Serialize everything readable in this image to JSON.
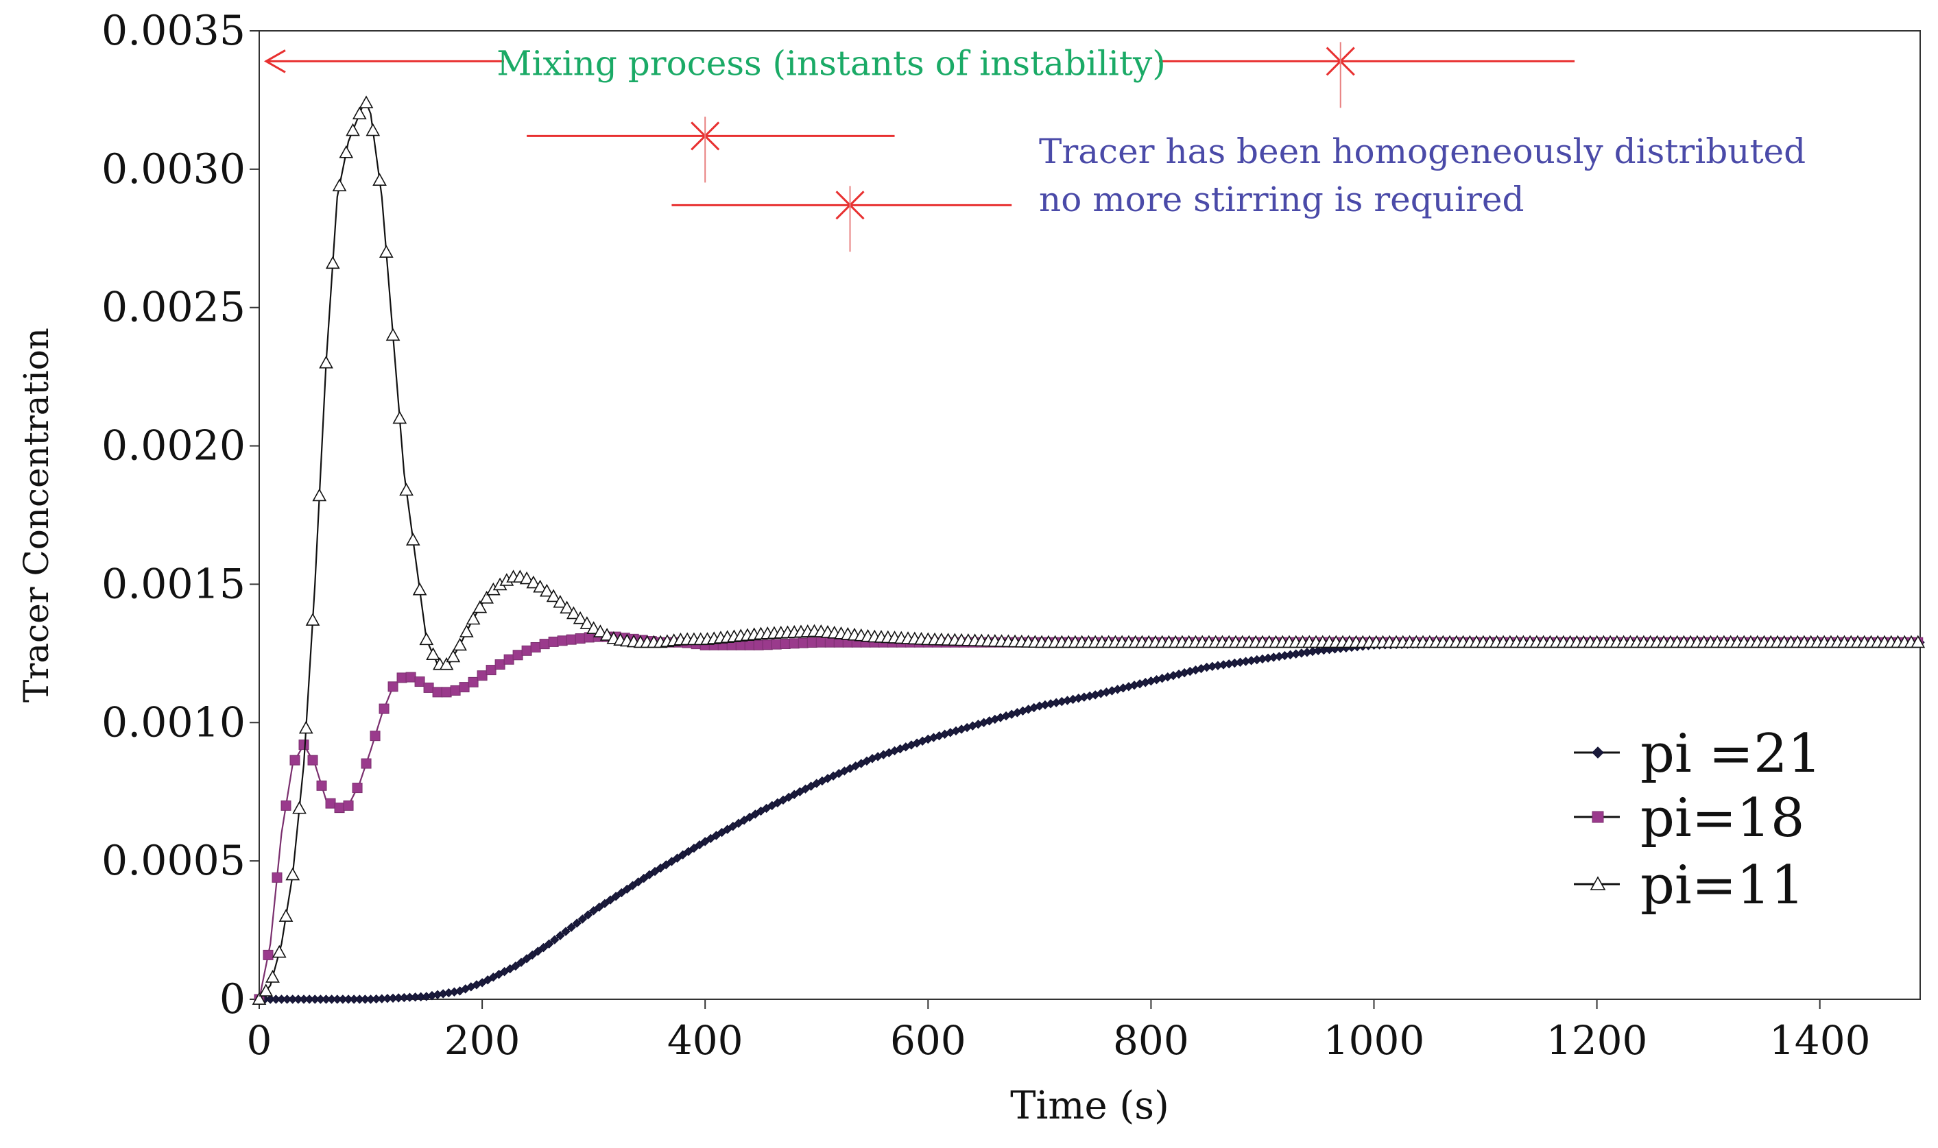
{
  "chart_data": {
    "type": "line",
    "xlabel": "Time (s)",
    "ylabel": "Tracer Concentration",
    "xlim": [
      0,
      1490
    ],
    "ylim": [
      0,
      0.0035
    ],
    "x_ticks": [
      0,
      200,
      400,
      600,
      800,
      1000,
      1200,
      1400
    ],
    "x_tick_labels": [
      "0",
      "200",
      "400",
      "600",
      "800",
      "1000",
      "1200",
      "1400"
    ],
    "y_ticks": [
      0,
      0.0005,
      0.001,
      0.0015,
      0.002,
      0.0025,
      0.003,
      0.0035
    ],
    "y_tick_labels": [
      "0",
      "0.0005",
      "0.0010",
      "0.0015",
      "0.0020",
      "0.0025",
      "0.0030",
      "0.0035"
    ],
    "legend_position": "bottom-right",
    "series": [
      {
        "name": "pi =21",
        "marker": "diamond",
        "color": "#111133",
        "marker_color": "#1a1a3a",
        "x": [
          0,
          100,
          150,
          180,
          200,
          230,
          260,
          300,
          350,
          400,
          450,
          500,
          550,
          600,
          650,
          700,
          750,
          800,
          850,
          900,
          950,
          1000,
          1100,
          1200,
          1300,
          1400,
          1490
        ],
        "y": [
          0,
          0,
          1e-05,
          3e-05,
          6e-05,
          0.00012,
          0.0002,
          0.00032,
          0.00045,
          0.00057,
          0.00068,
          0.00078,
          0.00087,
          0.00094,
          0.001,
          0.00106,
          0.0011,
          0.00115,
          0.0012,
          0.00123,
          0.00126,
          0.00128,
          0.00129,
          0.00129,
          0.00129,
          0.00129,
          0.00129
        ]
      },
      {
        "name": "pi=18",
        "marker": "square",
        "color": "#7a2f6e",
        "marker_color": "#9a3a8c",
        "x": [
          0,
          10,
          20,
          30,
          40,
          50,
          60,
          70,
          80,
          90,
          100,
          110,
          120,
          130,
          140,
          150,
          160,
          170,
          180,
          190,
          200,
          220,
          240,
          260,
          280,
          300,
          320,
          340,
          360,
          380,
          400,
          450,
          500,
          550,
          600,
          700,
          800,
          900,
          1000,
          1200,
          1400,
          1490
        ],
        "y": [
          0,
          0.0002,
          0.0006,
          0.00085,
          0.00092,
          0.00085,
          0.00072,
          0.00069,
          0.0007,
          0.00078,
          0.0009,
          0.00103,
          0.00113,
          0.00117,
          0.00116,
          0.00113,
          0.00111,
          0.00111,
          0.00112,
          0.00114,
          0.00117,
          0.00122,
          0.00126,
          0.00129,
          0.0013,
          0.00131,
          0.00131,
          0.0013,
          0.00129,
          0.00129,
          0.00128,
          0.00128,
          0.00129,
          0.00129,
          0.00129,
          0.00129,
          0.00129,
          0.00129,
          0.00129,
          0.00129,
          0.00129,
          0.00129
        ]
      },
      {
        "name": "pi=11",
        "marker": "triangle",
        "color": "#111111",
        "marker_color": "#222222",
        "x": [
          0,
          10,
          20,
          30,
          40,
          50,
          60,
          70,
          80,
          90,
          95,
          100,
          110,
          120,
          130,
          140,
          150,
          160,
          170,
          180,
          190,
          200,
          210,
          220,
          230,
          240,
          260,
          280,
          300,
          320,
          340,
          360,
          380,
          400,
          450,
          500,
          550,
          600,
          700,
          800,
          900,
          1000,
          1200,
          1400,
          1490
        ],
        "y": [
          0,
          5e-05,
          0.0002,
          0.00045,
          0.00085,
          0.0015,
          0.0023,
          0.0029,
          0.0031,
          0.0032,
          0.00325,
          0.0032,
          0.0029,
          0.0024,
          0.0019,
          0.0016,
          0.0013,
          0.00121,
          0.00121,
          0.00128,
          0.00136,
          0.00143,
          0.00148,
          0.00151,
          0.00153,
          0.00152,
          0.00147,
          0.0014,
          0.00134,
          0.0013,
          0.00129,
          0.00129,
          0.0013,
          0.0013,
          0.00132,
          0.00133,
          0.00131,
          0.0013,
          0.00129,
          0.00129,
          0.00129,
          0.00129,
          0.00129,
          0.00129,
          0.00129
        ]
      }
    ],
    "annotations": {
      "mixing_text": "Mixing process (instants of instability)",
      "mixing_color": "#1aaa66",
      "homogeneous_lines": [
        "Tracer has been homogeneously distributed",
        "no more stirring is required"
      ],
      "homogeneous_color": "#4a4aa8",
      "arrow_color": "#e83030",
      "markers": [
        {
          "series": "pi=11",
          "x": 970,
          "y": 0.00339,
          "line_from_x": 0,
          "line_to_x": 1180
        },
        {
          "series": "pi=18",
          "x": 400,
          "y": 0.00312,
          "line_from_x": 240,
          "line_to_x": 570
        },
        {
          "series": "pi =21",
          "x": 530,
          "y": 0.00287,
          "line_from_x": 370,
          "line_to_x": 675
        }
      ]
    }
  }
}
